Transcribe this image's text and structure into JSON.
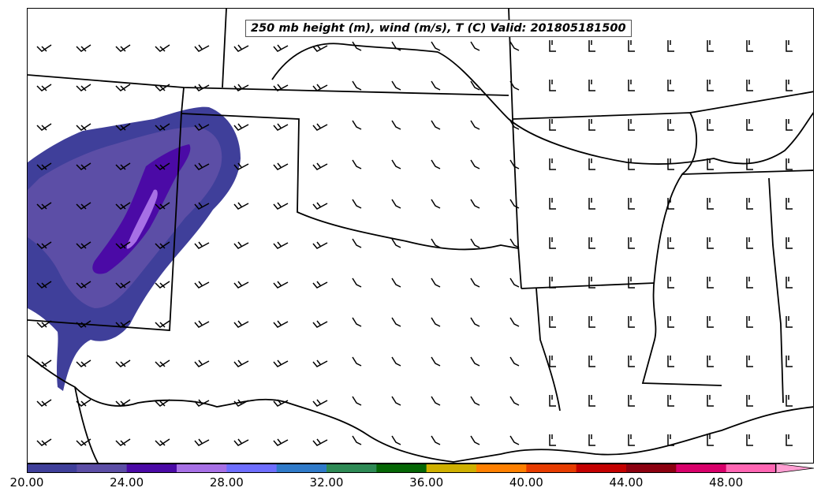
{
  "map": {
    "title": "250 mb height (m), wind (m/s), T (C) Valid: 201805181500"
  },
  "colorbar": {
    "colors": [
      "#3f3f9a",
      "#5c4ea6",
      "#4b0aa6",
      "#a770e6",
      "#6e6eff",
      "#2f7ac9",
      "#2e8a55",
      "#056605",
      "#cfb000",
      "#ff8000",
      "#e73c00",
      "#c40000",
      "#8c0010",
      "#d8006a",
      "#ff66b3"
    ],
    "extend_color": "#ff9ed2",
    "tick_labels": [
      "20.00",
      "24.00",
      "28.00",
      "32.00",
      "36.00",
      "40.00",
      "44.00",
      "48.00"
    ]
  }
}
